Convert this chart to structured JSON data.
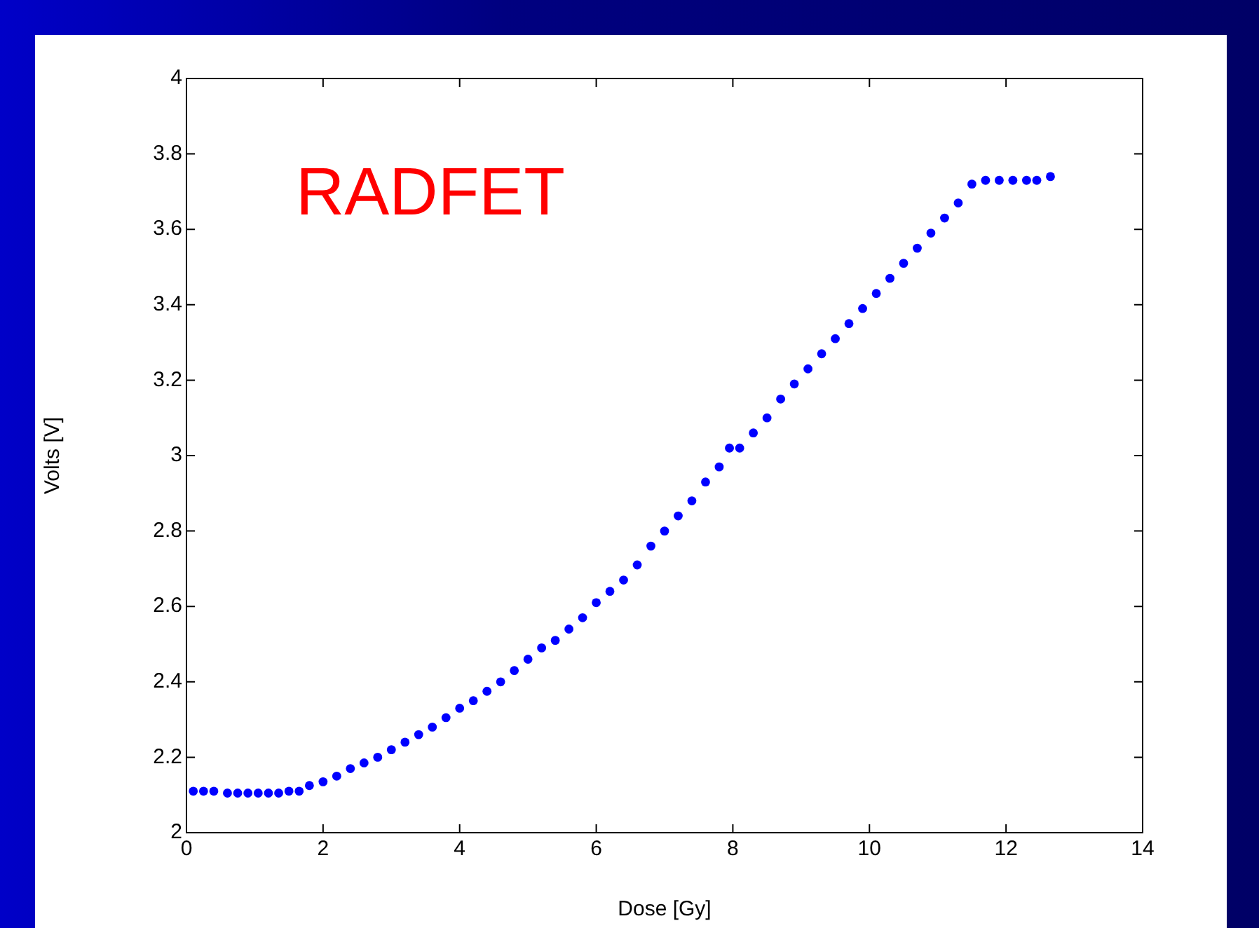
{
  "chart_data": {
    "type": "scatter",
    "xlabel": "Dose [Gy]",
    "ylabel": "Volts [V]",
    "annotations": [
      "RADFET"
    ],
    "xlim": [
      0,
      14
    ],
    "xticks": [
      0,
      2,
      4,
      6,
      8,
      10,
      12,
      14
    ],
    "ylim": [
      2,
      4
    ],
    "yticks": [
      2,
      2.2,
      2.4,
      2.6,
      2.8,
      3,
      3.2,
      3.4,
      3.6,
      3.8,
      4
    ],
    "grid": false,
    "legend": false,
    "marker": "circle",
    "series": [
      {
        "color": "#0000ff",
        "x": [
          0.1,
          0.25,
          0.4,
          0.6,
          0.75,
          0.9,
          1.05,
          1.2,
          1.35,
          1.5,
          1.65,
          1.8,
          2.0,
          2.2,
          2.4,
          2.6,
          2.8,
          3.0,
          3.2,
          3.4,
          3.6,
          3.8,
          4.0,
          4.2,
          4.4,
          4.6,
          4.8,
          5.0,
          5.2,
          5.4,
          5.6,
          5.8,
          6.0,
          6.2,
          6.4,
          6.6,
          6.8,
          7.0,
          7.2,
          7.4,
          7.6,
          7.8,
          7.95,
          8.1,
          8.3,
          8.5,
          8.7,
          8.9,
          9.1,
          9.3,
          9.5,
          9.7,
          9.9,
          10.1,
          10.3,
          10.5,
          10.7,
          10.9,
          11.1,
          11.3,
          11.5,
          11.7,
          11.9,
          12.1,
          12.3,
          12.45,
          12.65
        ],
        "values": [
          2.11,
          2.11,
          2.11,
          2.105,
          2.105,
          2.105,
          2.105,
          2.105,
          2.105,
          2.11,
          2.11,
          2.125,
          2.135,
          2.15,
          2.17,
          2.185,
          2.2,
          2.22,
          2.24,
          2.26,
          2.28,
          2.305,
          2.33,
          2.35,
          2.375,
          2.4,
          2.43,
          2.46,
          2.49,
          2.51,
          2.54,
          2.57,
          2.61,
          2.64,
          2.67,
          2.71,
          2.76,
          2.8,
          2.84,
          2.88,
          2.93,
          2.97,
          3.02,
          3.02,
          3.06,
          3.1,
          3.15,
          3.19,
          3.23,
          3.27,
          3.31,
          3.35,
          3.39,
          3.43,
          3.47,
          3.51,
          3.55,
          3.59,
          3.63,
          3.67,
          3.72,
          3.73,
          3.73,
          3.73,
          3.73,
          3.73,
          3.74
        ]
      }
    ]
  }
}
